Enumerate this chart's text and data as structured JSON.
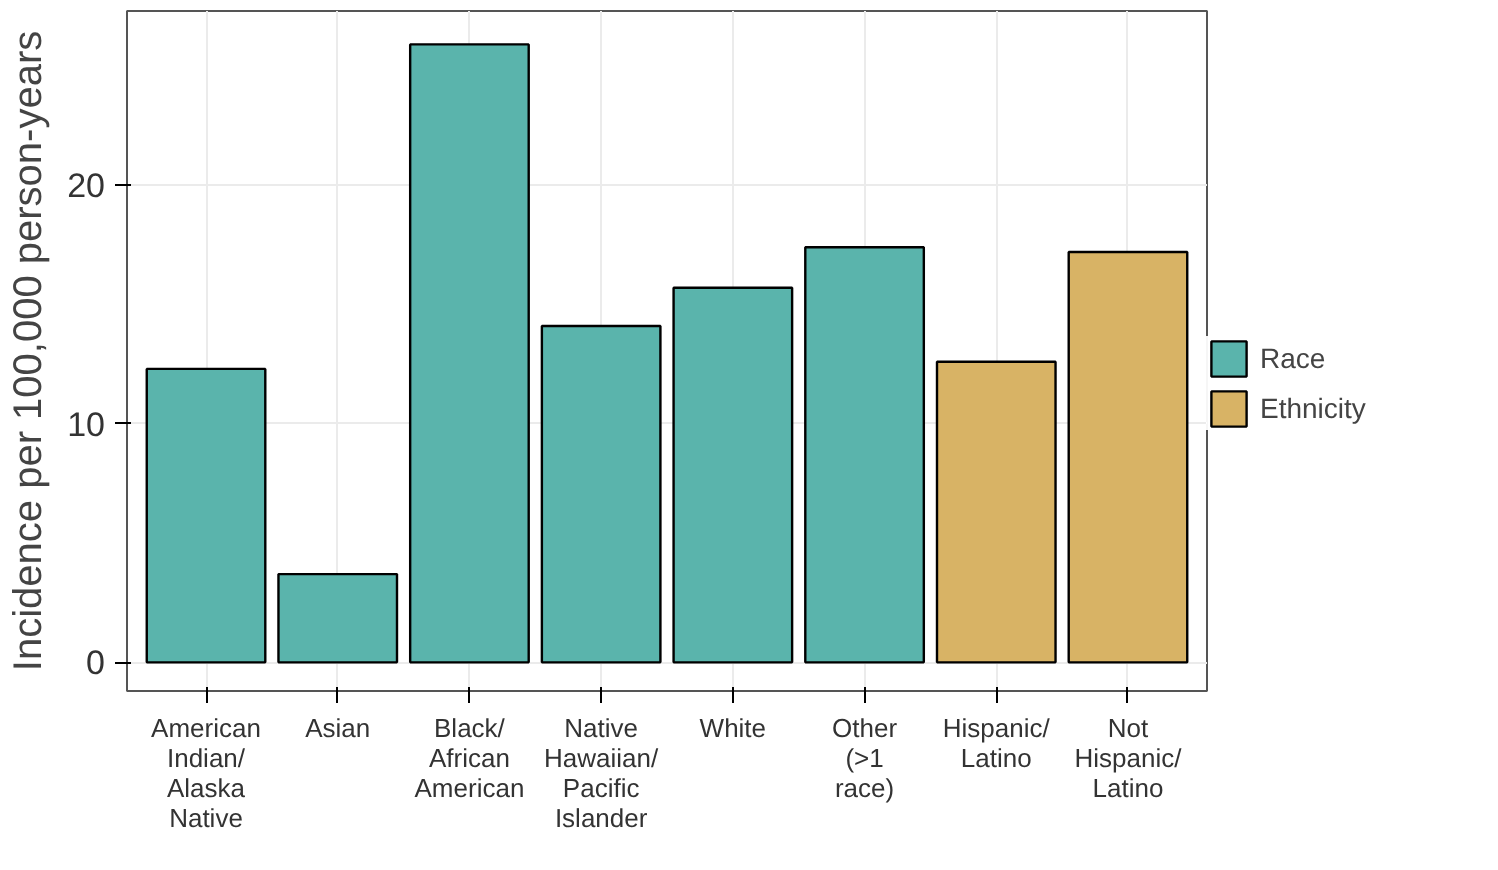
{
  "chart_data": {
    "type": "bar",
    "ylabel": "Incidence per 100,000 person-years",
    "categories": [
      "American\nIndian/\nAlaska\nNative",
      "Asian",
      "Black/\nAfrican\nAmerican",
      "Native\nHawaiian/\nPacific\nIslander",
      "White",
      "Other\n(>1\nrace)",
      "Hispanic/\nLatino",
      "Not\nHispanic/\nLatino"
    ],
    "series": [
      {
        "name": "Race",
        "color": "#5ab4ac",
        "values": [
          12.3,
          3.7,
          25.9,
          14.1,
          15.7,
          17.4,
          null,
          null
        ]
      },
      {
        "name": "Ethnicity",
        "color": "#d8b365",
        "values": [
          null,
          null,
          null,
          null,
          null,
          null,
          12.6,
          17.2
        ]
      }
    ],
    "ylim": [
      -1.2,
      27.3
    ],
    "yticks": [
      0,
      10,
      20
    ],
    "grid": true,
    "legend": "right"
  }
}
